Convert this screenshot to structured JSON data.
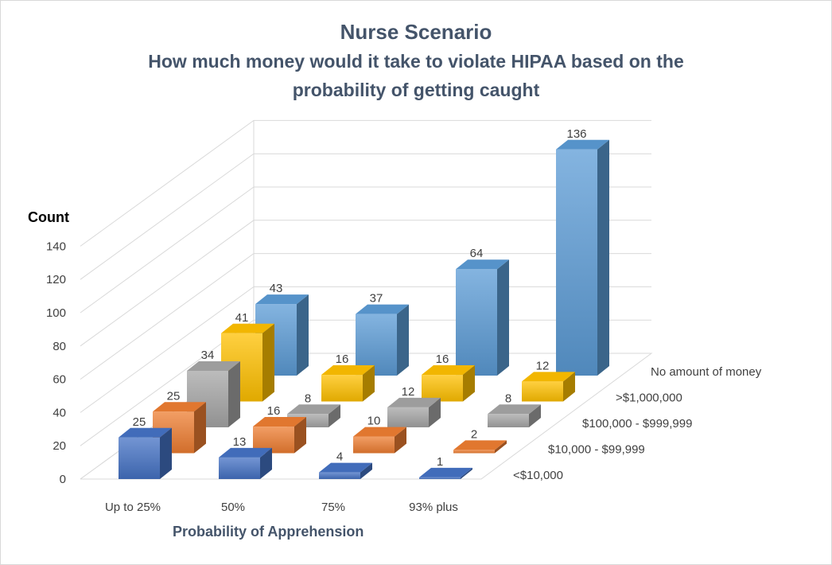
{
  "chart_data": {
    "type": "bar",
    "subtype": "3d-column",
    "title": "Nurse Scenario",
    "subtitle_lines": [
      "How much money would it take to violate HIPAA based on the",
      "probability of getting caught"
    ],
    "xlabel": "Probability of Apprehension",
    "ylabel": "Count",
    "ylim": [
      0,
      140
    ],
    "yticks": [
      0,
      20,
      40,
      60,
      80,
      100,
      120,
      140
    ],
    "categories": [
      "Up to 25%",
      "50%",
      "75%",
      "93% plus"
    ],
    "series": [
      {
        "name": "<$10,000",
        "values": [
          25,
          13,
          4,
          1
        ],
        "color": "#4472c4"
      },
      {
        "name": "$10,000 - $99,999",
        "values": [
          25,
          16,
          10,
          2
        ],
        "color": "#ed7d31"
      },
      {
        "name": "$100,000 - $999,999",
        "values": [
          34,
          8,
          12,
          8
        ],
        "color": "#a5a5a5"
      },
      {
        "name": ">$1,000,000",
        "values": [
          41,
          16,
          16,
          12
        ],
        "color": "#ffc000"
      },
      {
        "name": "No amount of money",
        "values": [
          43,
          37,
          64,
          136
        ],
        "color": "#5b9bd5"
      }
    ],
    "grid": true,
    "legend": "none",
    "axis_title_color": "#000000",
    "xlabel_color": "#44546a"
  }
}
